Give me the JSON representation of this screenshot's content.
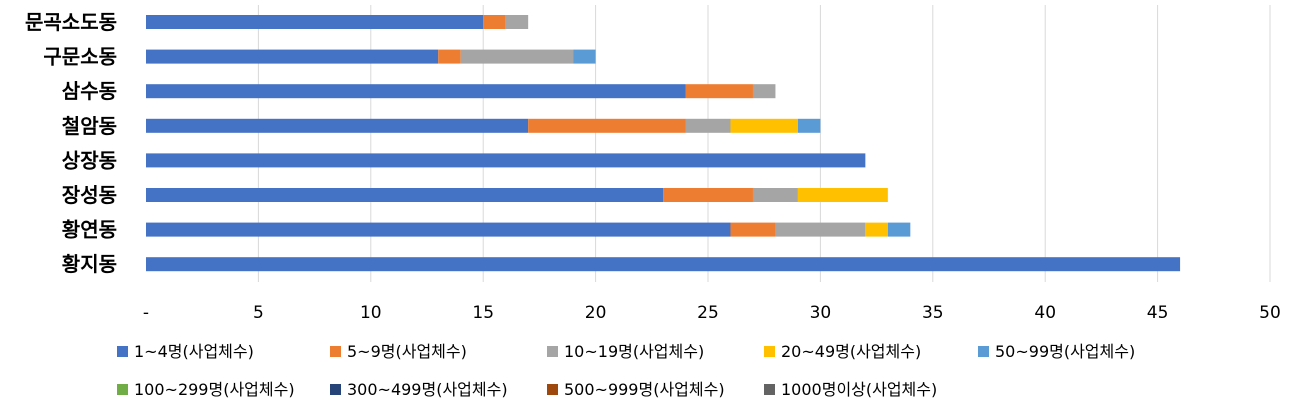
{
  "chart_data": {
    "type": "bar",
    "orientation": "horizontal",
    "stacked": true,
    "categories": [
      "문곡소도동",
      "구문소동",
      "삼수동",
      "철암동",
      "상장동",
      "장성동",
      "황연동",
      "황지동"
    ],
    "series": [
      {
        "name": "1~4명(사업체수)",
        "color": "#4472C4",
        "values": [
          15,
          13,
          24,
          17,
          32,
          23,
          26,
          46
        ]
      },
      {
        "name": "5~9명(사업체수)",
        "color": "#ED7D31",
        "values": [
          1,
          1,
          3,
          7,
          0,
          4,
          2,
          0
        ]
      },
      {
        "name": "10~19명(사업체수)",
        "color": "#A5A5A5",
        "values": [
          1,
          5,
          1,
          2,
          0,
          2,
          4,
          0
        ]
      },
      {
        "name": "20~49명(사업체수)",
        "color": "#FFC000",
        "values": [
          0,
          0,
          0,
          3,
          0,
          4,
          1,
          0
        ]
      },
      {
        "name": "50~99명(사업체수)",
        "color": "#5B9BD5",
        "values": [
          0,
          1,
          0,
          1,
          0,
          0,
          1,
          0
        ]
      },
      {
        "name": "100~299명(사업체수)",
        "color": "#70AD47",
        "values": [
          0,
          0,
          0,
          0,
          0,
          0,
          0,
          0
        ]
      },
      {
        "name": "300~499명(사업체수)",
        "color": "#264478",
        "values": [
          0,
          0,
          0,
          0,
          0,
          0,
          0,
          0
        ]
      },
      {
        "name": "500~999명(사업체수)",
        "color": "#9E480E",
        "values": [
          0,
          0,
          0,
          0,
          0,
          0,
          0,
          0
        ]
      },
      {
        "name": "1000명이상(사업체수)",
        "color": "#636363",
        "values": [
          0,
          0,
          0,
          0,
          0,
          0,
          0,
          0
        ]
      }
    ],
    "xlim": [
      0,
      50
    ],
    "xticks": [
      "-",
      "5",
      "10",
      "15",
      "20",
      "25",
      "30",
      "35",
      "40",
      "45",
      "50"
    ],
    "grid": "vertical",
    "legend": "bottom",
    "title": "",
    "xlabel": "",
    "ylabel": ""
  }
}
